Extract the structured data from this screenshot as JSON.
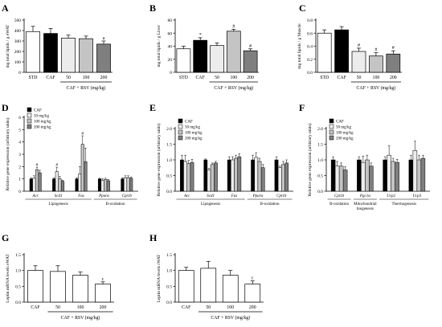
{
  "chart_data": [
    {
      "panel": "A",
      "type": "bar",
      "categories": [
        "STD",
        "CAF",
        "50",
        "100",
        "200"
      ],
      "values": [
        390,
        372,
        328,
        322,
        270
      ],
      "errors": [
        50,
        48,
        28,
        25,
        30
      ],
      "fills": [
        "white",
        "black",
        "#ececec",
        "#c4c4c4",
        "#7f7f7f"
      ],
      "marks": [
        "",
        "",
        "",
        "",
        "a"
      ],
      "ylabel": "mg total lipids / g eWAT",
      "ylim": [
        0,
        500
      ],
      "yticks": [
        0,
        100,
        200,
        300,
        400,
        500
      ],
      "group_label": "CAF + RSV (mg/kg)",
      "group_start": 2
    },
    {
      "panel": "B",
      "type": "bar",
      "categories": [
        "STD",
        "CAF",
        "50",
        "100",
        "200"
      ],
      "values": [
        36,
        49,
        41,
        63,
        33
      ],
      "errors": [
        4,
        4,
        4,
        3,
        3
      ],
      "fills": [
        "white",
        "black",
        "#ececec",
        "#c4c4c4",
        "#7f7f7f"
      ],
      "marks": [
        "",
        "*",
        "",
        "#",
        "#"
      ],
      "ylabel": "mg total lipids / g Liver",
      "ylim": [
        0,
        80
      ],
      "yticks": [
        0,
        20,
        40,
        60,
        80
      ],
      "group_label": "CAF + RSV (mg/kg)",
      "group_start": 2
    },
    {
      "panel": "C",
      "type": "bar",
      "categories": [
        "STD",
        "CAF",
        "50",
        "100",
        "200"
      ],
      "values": [
        0.6,
        0.65,
        0.32,
        0.25,
        0.28
      ],
      "errors": [
        0.05,
        0.05,
        0.05,
        0.05,
        0.05
      ],
      "fills": [
        "white",
        "black",
        "#ececec",
        "#c4c4c4",
        "#7f7f7f"
      ],
      "marks": [
        "",
        "",
        "#",
        "#",
        "#"
      ],
      "ylabel": "mg total lipids / g Muscle",
      "ylim": [
        0,
        0.8
      ],
      "yticks": [
        "0.0",
        "0.2",
        "0.4",
        "0.6",
        "0.8"
      ],
      "group_label": "CAF + RSV (mg/kg)",
      "group_start": 2
    },
    {
      "panel": "D",
      "type": "bar",
      "legend": [
        "CAF",
        "50 mg/kg",
        "100 mg/kg",
        "200 mg/kg"
      ],
      "categories": [
        "Acc",
        "Scd1",
        "Fas",
        "Pparα",
        "Cpt1b"
      ],
      "series": [
        {
          "name": "CAF",
          "values": [
            1.0,
            1.0,
            1.0,
            1.0,
            1.0
          ],
          "errors": [
            0.1,
            0.1,
            0.1,
            0.05,
            0.1
          ]
        },
        {
          "name": "50 mg/kg",
          "values": [
            1.05,
            1.6,
            1.4,
            0.9,
            1.1
          ],
          "errors": [
            0.2,
            0.35,
            0.6,
            0.1,
            0.15
          ]
        },
        {
          "name": "100 mg/kg",
          "values": [
            1.75,
            1.0,
            3.8,
            0.95,
            1.1
          ],
          "errors": [
            0.2,
            0.2,
            0.7,
            0.1,
            0.15
          ]
        },
        {
          "name": "200 mg/kg",
          "values": [
            1.5,
            0.8,
            2.4,
            0.85,
            1.05
          ],
          "errors": [
            0.2,
            0.1,
            1.1,
            0.1,
            0.1
          ]
        }
      ],
      "marks": [
        {
          "cat": 0,
          "series": 2,
          "text": "#"
        },
        {
          "cat": 1,
          "series": 1,
          "text": "#"
        },
        {
          "cat": 2,
          "series": 2,
          "text": "#"
        }
      ],
      "ylabel": "Relative gene expression (arbitrary units)",
      "ylim": [
        0,
        6
      ],
      "yticks": [
        0,
        1,
        2,
        3,
        4,
        5,
        6
      ],
      "groups": [
        {
          "label": "Lipogenesis",
          "from": 0,
          "to": 2
        },
        {
          "label": "B-oxidation",
          "from": 3,
          "to": 4
        }
      ]
    },
    {
      "panel": "E",
      "type": "bar",
      "legend": [
        "CAF",
        "50 mg/kg",
        "100 mg/kg",
        "200 mg/kg"
      ],
      "categories": [
        "Acc",
        "Scd1",
        "Fas",
        "Pparα",
        "Cpt1b"
      ],
      "series": [
        {
          "name": "CAF",
          "values": [
            1.0,
            1.0,
            1.0,
            1.0,
            1.0
          ],
          "errors": [
            0.15,
            0.03,
            0.1,
            0.15,
            0.1
          ]
        },
        {
          "name": "50 mg/kg",
          "values": [
            0.95,
            0.68,
            1.0,
            1.08,
            0.75
          ],
          "errors": [
            0.2,
            0.05,
            0.1,
            0.15,
            0.05
          ]
        },
        {
          "name": "100 mg/kg",
          "values": [
            0.88,
            0.85,
            1.05,
            0.95,
            0.85
          ],
          "errors": [
            0.1,
            0.05,
            0.1,
            0.1,
            0.1
          ]
        },
        {
          "name": "200 mg/kg",
          "values": [
            0.92,
            0.9,
            1.1,
            0.75,
            0.9
          ],
          "errors": [
            0.1,
            0.05,
            0.1,
            0.1,
            0.1
          ]
        }
      ],
      "marks": [],
      "ylabel": "Relative gene expression (arbitrary units)",
      "ylim": [
        0,
        2.0
      ],
      "yticks": [
        "0.0",
        "0.5",
        "1.0",
        "1.5",
        "2.0"
      ],
      "groups": [
        {
          "label": "Lipogenesis",
          "from": 0,
          "to": 2
        },
        {
          "label": "B-oxidation",
          "from": 3,
          "to": 4
        }
      ]
    },
    {
      "panel": "F",
      "type": "bar",
      "legend": [
        "CAF",
        "50 mg/kg",
        "100 mg/kg",
        "200 mg/kg"
      ],
      "categories": [
        "Cpt1b",
        "Pgc1α",
        "Ucp2",
        "Ucp3"
      ],
      "series": [
        {
          "name": "CAF",
          "values": [
            1.0,
            1.0,
            1.0,
            1.0
          ],
          "errors": [
            0.1,
            0.1,
            0.1,
            0.15
          ]
        },
        {
          "name": "50 mg/kg",
          "values": [
            0.8,
            0.92,
            1.15,
            1.3
          ],
          "errors": [
            0.15,
            0.2,
            0.3,
            0.3
          ]
        },
        {
          "name": "100 mg/kg",
          "values": [
            0.8,
            1.0,
            0.95,
            1.0
          ],
          "errors": [
            0.1,
            0.15,
            0.1,
            0.15
          ]
        },
        {
          "name": "200 mg/kg",
          "values": [
            0.68,
            0.8,
            0.92,
            1.05
          ],
          "errors": [
            0.1,
            0.1,
            0.1,
            0.1
          ]
        }
      ],
      "marks": [],
      "ylabel": "Relative gene expression (arbitrary units)",
      "ylim": [
        0,
        2.0
      ],
      "yticks": [
        "0.0",
        "0.5",
        "1.0",
        "1.5",
        "2.0"
      ],
      "groups": [
        {
          "label": "B-oxidation",
          "from": 0,
          "to": 0
        },
        {
          "label": "Mitochondrial biogenesis",
          "from": 1,
          "to": 1
        },
        {
          "label": "Thermogenesis",
          "from": 2,
          "to": 3
        }
      ]
    },
    {
      "panel": "G",
      "type": "bar",
      "categories": [
        "CAF",
        "50",
        "100",
        "200"
      ],
      "values": [
        1.0,
        0.97,
        0.85,
        0.57
      ],
      "errors": [
        0.15,
        0.18,
        0.1,
        0.07
      ],
      "fills": [
        "white",
        "white",
        "white",
        "white"
      ],
      "marks": [
        "",
        "",
        "",
        "c"
      ],
      "ylabel": "Leptin mRNA levels eWAT",
      "ylim": [
        0,
        1.5
      ],
      "yticks": [
        "0.0",
        "0.5",
        "1.0",
        "1.5"
      ],
      "group_label": "CAF + RSV (mg/kg)",
      "group_start": 1
    },
    {
      "panel": "H",
      "type": "bar",
      "categories": [
        "CAF",
        "50",
        "100",
        "200"
      ],
      "values": [
        1.0,
        1.07,
        0.85,
        0.57
      ],
      "errors": [
        0.1,
        0.22,
        0.15,
        0.1
      ],
      "fills": [
        "white",
        "white",
        "white",
        "white"
      ],
      "marks": [
        "",
        "",
        "",
        "c"
      ],
      "ylabel": "Leptin mRNA levels rWAT",
      "ylim": [
        0,
        1.5
      ],
      "yticks": [
        "0.0",
        "0.5",
        "1.0",
        "1.5"
      ],
      "group_label": "CAF + RSV (mg/kg)",
      "group_start": 1
    }
  ],
  "colors": {
    "CAF": "#000000",
    "50 mg/kg": "#ececec",
    "100 mg/kg": "#c4c4c4",
    "200 mg/kg": "#7f7f7f",
    "significance_mark": "#8c8c8c"
  }
}
